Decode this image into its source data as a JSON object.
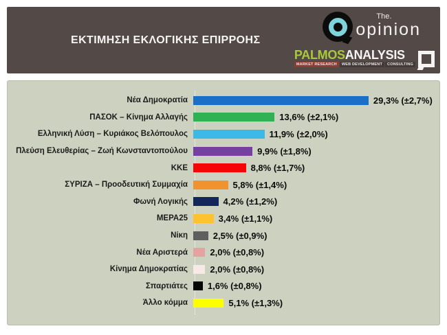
{
  "header": {
    "title": "ΕΚΤΙΜΗΣΗ ΕΚΛΟΓΙΚΗΣ ΕΠΙΡΡΟΗΣ",
    "opinion_logo": {
      "the_label": "The.",
      "name_label": "opinion"
    },
    "palmos_logo": {
      "part1": "PALMOS",
      "part2": "ANALYSIS",
      "tagline_segments": [
        "MARKET RESEARCH",
        "WEB DEVELOPMENT",
        "CONSULTING"
      ]
    },
    "colors": {
      "header_bg": "#534a48",
      "opinion_cyan": "#7fd3da",
      "palmos_green": "#a9c83b"
    }
  },
  "chart_data": {
    "type": "bar",
    "orientation": "horizontal",
    "title": "ΕΚΤΙΜΗΣΗ ΕΚΛΟΓΙΚΗΣ ΕΠΙΡΡΟΗΣ",
    "categories": [
      "Νέα Δημοκρατία",
      "ΠΑΣΟΚ – Κίνημα Αλλαγής",
      "Ελληνική Λύση – Κυριάκος Βελόπουλος",
      "Πλεύση Ελευθερίας – Ζωή Κωνσταντοπούλου",
      "ΚΚΕ",
      "ΣΥΡΙΖΑ – Προοδευτική Συμμαχία",
      "Φωνή Λογικής",
      "ΜΕΡΑ25",
      "Νίκη",
      "Νέα Αριστερά",
      "Κίνημα Δημοκρατίας",
      "Σπαρτιάτες",
      "Άλλο κόμμα"
    ],
    "values": [
      29.3,
      13.6,
      11.9,
      9.9,
      8.8,
      5.8,
      4.2,
      3.4,
      2.5,
      2.0,
      2.0,
      1.6,
      5.1
    ],
    "margins_of_error": [
      2.7,
      2.1,
      2.0,
      1.8,
      1.7,
      1.4,
      1.2,
      1.1,
      0.9,
      0.8,
      0.8,
      0.8,
      1.3
    ],
    "value_labels": [
      "29,3% (±2,7%)",
      "13,6% (±2,1%)",
      "11,9% (±2,0%)",
      "9,9% (±1,8%)",
      "8,8% (±1,7%)",
      "5,8% (±1,4%)",
      "4,2% (±1,2%)",
      "3,4% (±1,1%)",
      "2,5% (±0,9%)",
      "2,0% (±0,8%)",
      "2,0% (±0,8%)",
      "1,6% (±0,8%)",
      "5,1% (±1,3%)"
    ],
    "bar_colors": [
      "#1b6fc7",
      "#2eb254",
      "#3db9e9",
      "#7540a0",
      "#f50505",
      "#f0922d",
      "#13265c",
      "#fdc32e",
      "#5f5f5f",
      "#e2a3a2",
      "#f6e9e6",
      "#050505",
      "#fcff00"
    ],
    "xlim": [
      0,
      30.5
    ],
    "grid": false,
    "legend": "none",
    "panel_background": "#cdd2c0"
  }
}
